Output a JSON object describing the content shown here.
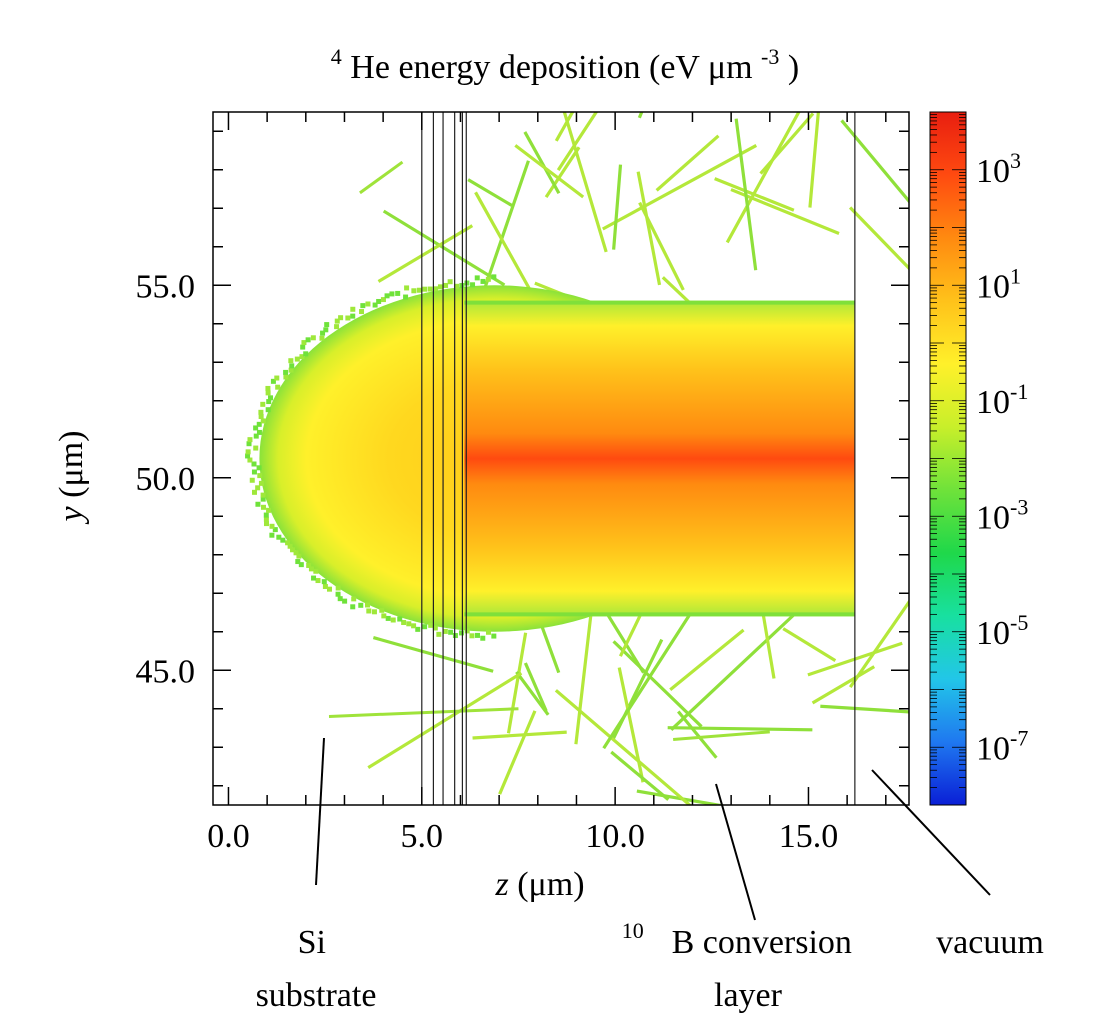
{
  "chart_data": {
    "type": "heatmap",
    "title": {
      "prefix_sup": "4",
      "main": "He energy deposition (eV μm",
      "unit_sup": "-3",
      "suffix": ")"
    },
    "xlabel": {
      "var": "z",
      "unit": " (μm)"
    },
    "ylabel": {
      "var": "y",
      "unit": " (μm)"
    },
    "xlim": [
      -0.4,
      17.6
    ],
    "ylim": [
      41.5,
      59.5
    ],
    "x_ticks": [
      {
        "value": 0.0,
        "label": "0.0"
      },
      {
        "value": 5.0,
        "label": "5.0"
      },
      {
        "value": 10.0,
        "label": "10.0"
      },
      {
        "value": 15.0,
        "label": "15.0"
      }
    ],
    "y_ticks": [
      {
        "value": 45.0,
        "label": "45.0"
      },
      {
        "value": 50.0,
        "label": "50.0"
      },
      {
        "value": 55.0,
        "label": "55.0"
      }
    ],
    "colorbar": {
      "scale": "log",
      "range_exp": [
        -8,
        4
      ],
      "ticks": [
        {
          "base": "10",
          "exp": "3",
          "value": 1000
        },
        {
          "base": "10",
          "exp": "1",
          "value": 10
        },
        {
          "base": "10",
          "exp": "-1",
          "value": 0.1
        },
        {
          "base": "10",
          "exp": "-3",
          "value": 0.001
        },
        {
          "base": "10",
          "exp": "-5",
          "value": 1e-05
        },
        {
          "base": "10",
          "exp": "-7",
          "value": 1e-07
        }
      ],
      "colors": [
        "#0a1fd6",
        "#1f78f0",
        "#22c6e8",
        "#18e0a0",
        "#1fd84a",
        "#6fe23a",
        "#c8ef2a",
        "#fff02a",
        "#ffc21a",
        "#ff8a10",
        "#ff4a10",
        "#e81e10"
      ]
    },
    "layer_boundaries_z": [
      5.0,
      5.3,
      5.55,
      5.85,
      6.05,
      6.15,
      16.2
    ],
    "regions": [
      {
        "name": "Si substrate",
        "z_range": [
          -0.4,
          6.1
        ],
        "peak_log10": 1.0
      },
      {
        "name": "10B conversion layer",
        "z_range": [
          6.1,
          16.2
        ],
        "y_range": [
          46.4,
          54.6
        ],
        "peak_log10": 3.0
      },
      {
        "name": "vacuum",
        "z_range": [
          16.2,
          17.6
        ]
      }
    ],
    "beam_center_y": 50.5
  },
  "annotations": {
    "si_substrate": {
      "line1": "Si",
      "line2": "substrate"
    },
    "conversion_layer": {
      "sup": "10",
      "line1": "B conversion",
      "line2": "layer"
    },
    "vacuum": {
      "line1": "vacuum"
    }
  }
}
